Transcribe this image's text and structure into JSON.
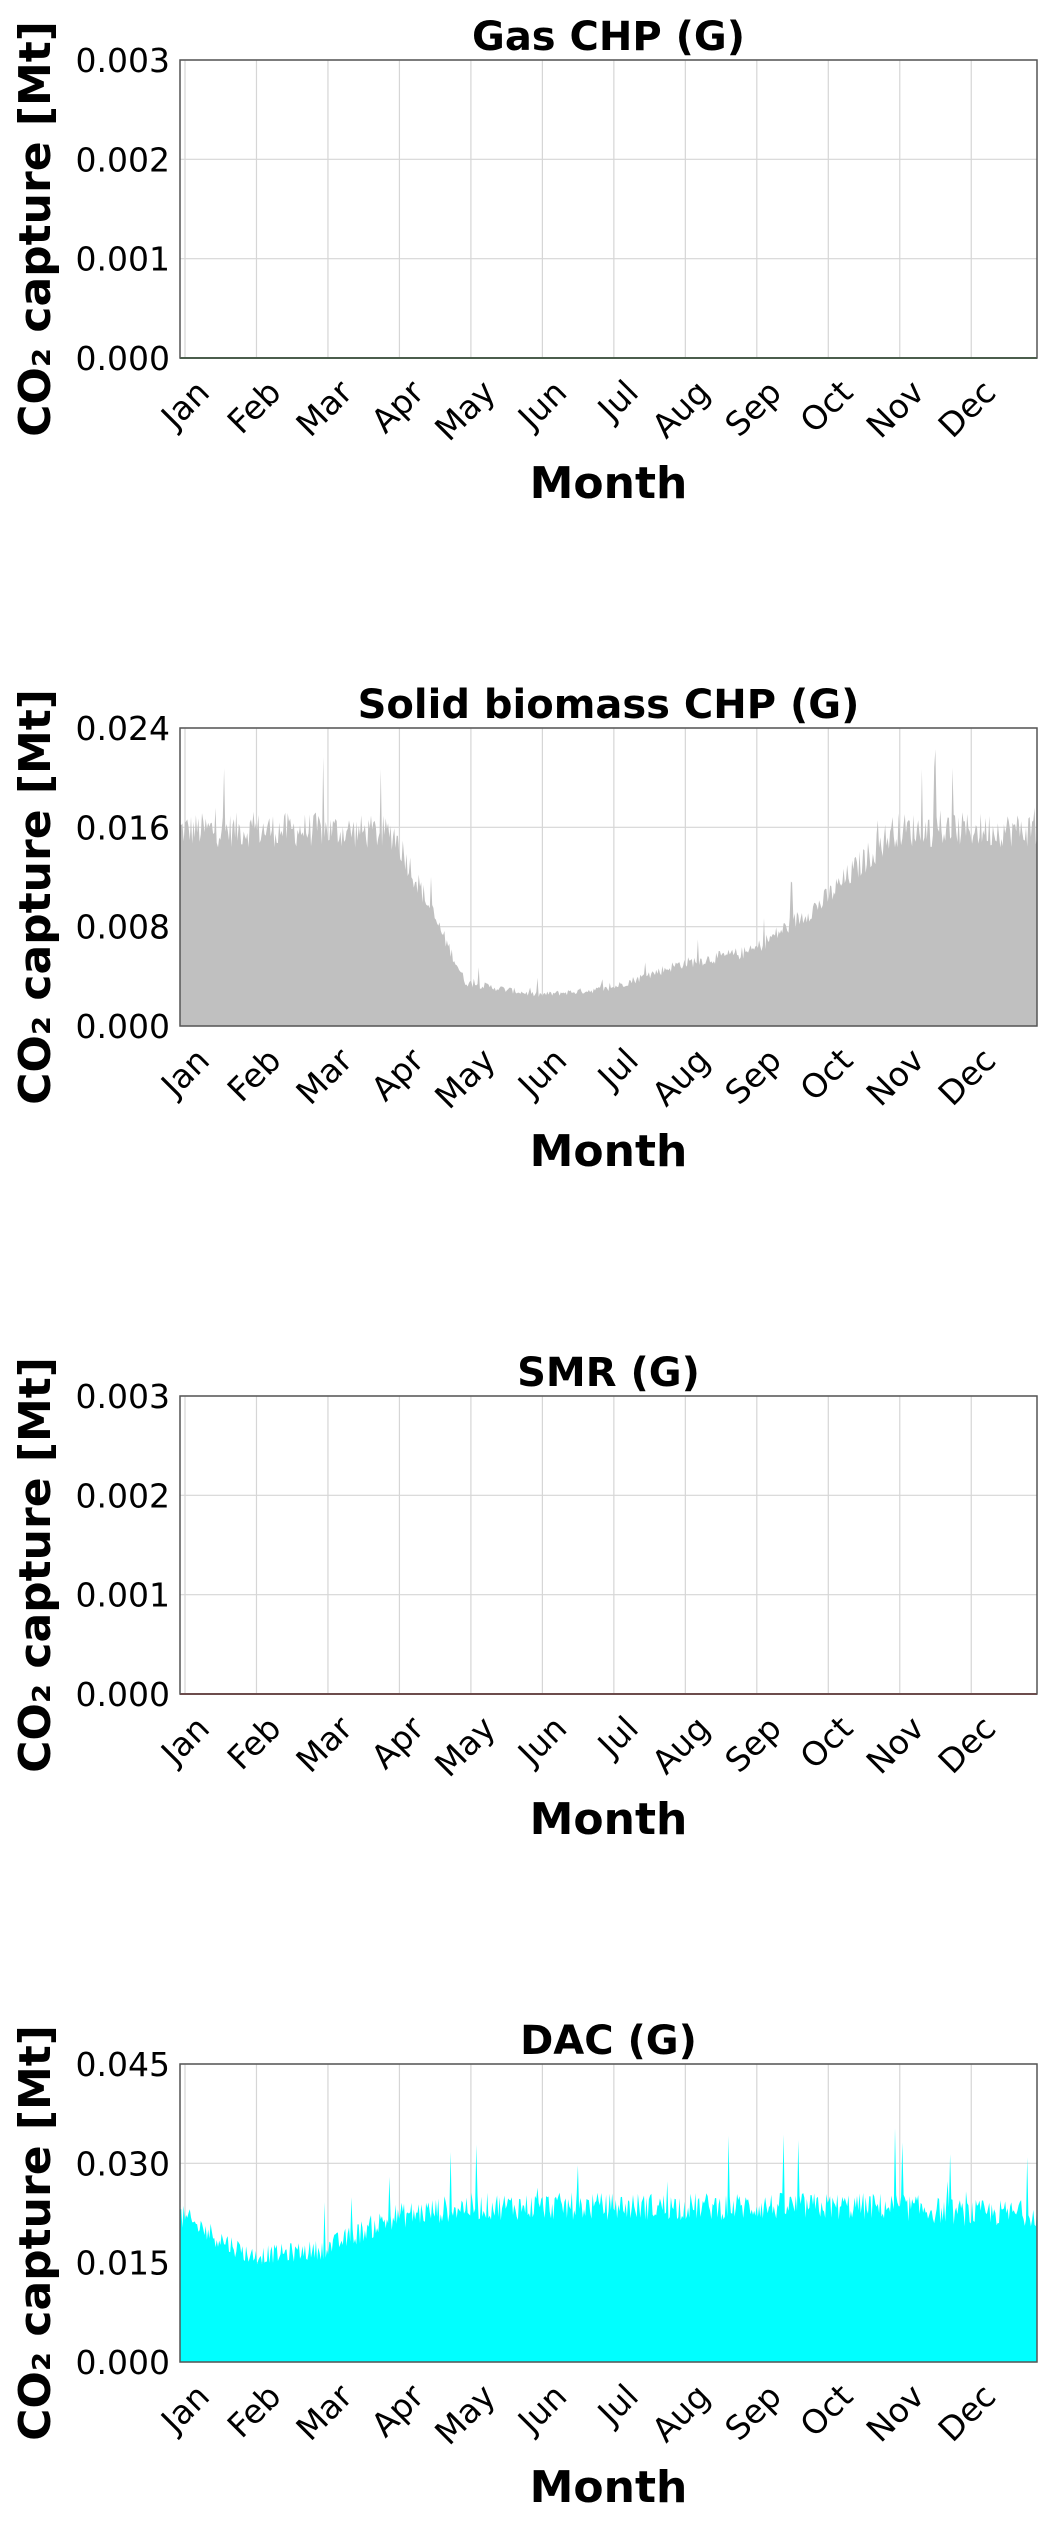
{
  "chart_data": [
    {
      "type": "area",
      "title": "Gas CHP (G)",
      "xlabel": "Month",
      "ylabel": "CO₂ capture [Mt]",
      "categories": [
        "Jan",
        "Feb",
        "Mar",
        "Apr",
        "May",
        "Jun",
        "Jul",
        "Aug",
        "Sep",
        "Oct",
        "Nov",
        "Dec"
      ],
      "yticks": [
        "0.000",
        "0.001",
        "0.002",
        "0.003"
      ],
      "ylim": [
        0,
        0.003
      ],
      "grid": true,
      "color": "#2e7d32",
      "series": [
        {
          "values": [
            0,
            0,
            0,
            0,
            0,
            0,
            0,
            0,
            0,
            0,
            0,
            0
          ]
        }
      ]
    },
    {
      "type": "area",
      "title": "Solid biomass CHP (G)",
      "xlabel": "Month",
      "ylabel": "CO₂ capture [Mt]",
      "categories": [
        "Jan",
        "Feb",
        "Mar",
        "Apr",
        "May",
        "Jun",
        "Jul",
        "Aug",
        "Sep",
        "Oct",
        "Nov",
        "Dec"
      ],
      "yticks": [
        "0.000",
        "0.008",
        "0.016",
        "0.024"
      ],
      "ylim": [
        0,
        0.024
      ],
      "grid": true,
      "color": "#c0c0c0",
      "series": [
        {
          "values": [
            0.0158,
            0.0158,
            0.0158,
            0.0155,
            0.0035,
            0.0025,
            0.003,
            0.005,
            0.006,
            0.01,
            0.0158,
            0.0158
          ]
        }
      ]
    },
    {
      "type": "area",
      "title": "SMR (G)",
      "xlabel": "Month",
      "ylabel": "CO₂ capture [Mt]",
      "categories": [
        "Jan",
        "Feb",
        "Mar",
        "Apr",
        "May",
        "Jun",
        "Jul",
        "Aug",
        "Sep",
        "Oct",
        "Nov",
        "Dec"
      ],
      "yticks": [
        "0.000",
        "0.001",
        "0.002",
        "0.003"
      ],
      "ylim": [
        0,
        0.003
      ],
      "grid": true,
      "color": "#b03030",
      "series": [
        {
          "values": [
            0,
            0,
            0,
            0,
            0,
            0,
            0,
            0,
            0,
            0,
            0,
            0
          ]
        }
      ]
    },
    {
      "type": "area",
      "title": "DAC (G)",
      "xlabel": "Month",
      "ylabel": "CO₂ capture [Mt]",
      "categories": [
        "Jan",
        "Feb",
        "Mar",
        "Apr",
        "May",
        "Jun",
        "Jul",
        "Aug",
        "Sep",
        "Oct",
        "Nov",
        "Dec"
      ],
      "yticks": [
        "0.000",
        "0.015",
        "0.030",
        "0.045"
      ],
      "ylim": [
        0,
        0.045
      ],
      "grid": true,
      "color": "#00ffff",
      "series": [
        {
          "values": [
            0.022,
            0.016,
            0.017,
            0.022,
            0.0235,
            0.0235,
            0.0235,
            0.0235,
            0.0235,
            0.0235,
            0.0235,
            0.0225
          ]
        }
      ]
    }
  ]
}
